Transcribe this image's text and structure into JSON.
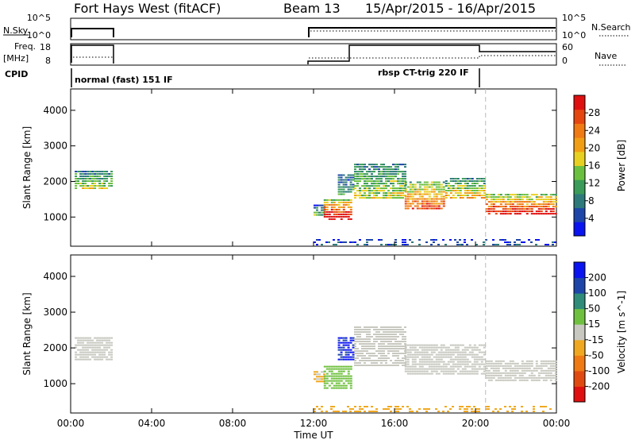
{
  "header": {
    "station": "Fort Hays West (fitACF)",
    "beam": "Beam 13",
    "dates": "15/Apr/2015 - 16/Apr/2015"
  },
  "strip_labels": {
    "nsky": "N.Sky",
    "nsky_ticks": [
      "10^5",
      "10^0"
    ],
    "freq": "Freq.",
    "freq_unit": "[MHz]",
    "freq_ticks": [
      "18",
      "8"
    ],
    "cpid": "CPID",
    "nsearch": "N.Search",
    "nsearch_ticks": [
      "10^5",
      "10^0"
    ],
    "nave": "Nave",
    "nave_ticks": [
      "60",
      "0"
    ]
  },
  "cpid_modes": {
    "left": "normal (fast) 151 IF",
    "right": "rbsp CT-trig 220 IF"
  },
  "chart_data": [
    {
      "type": "heatmap",
      "title": "",
      "parameter": "Power",
      "colorbar_label": "Power [dB]",
      "colorbar_ticks": [
        4,
        8,
        12,
        16,
        20,
        24,
        28
      ],
      "colorbar_range": [
        0,
        32
      ],
      "colors": [
        "#0a14f0",
        "#1e46a8",
        "#2e7a7a",
        "#3a9c58",
        "#6cc040",
        "#e8d020",
        "#f29e14",
        "#f07a14",
        "#e64610",
        "#e01010"
      ],
      "xlabel": "Time UT",
      "ylabel": "Slant Range [km]",
      "xlim_hours": [
        0,
        24
      ],
      "ylim_km": [
        180,
        4600
      ],
      "yticks": [
        1000,
        2000,
        3000,
        4000
      ],
      "echo_regions": [
        {
          "t_start": 0.2,
          "t_end": 2.0,
          "r_low": 1800,
          "r_high": 2300,
          "level": 0.45
        },
        {
          "t_start": 12.0,
          "t_end": 12.5,
          "r_low": 1050,
          "r_high": 1350,
          "level": 0.35
        },
        {
          "t_start": 12.5,
          "t_end": 13.8,
          "r_low": 950,
          "r_high": 1500,
          "level": 0.9
        },
        {
          "t_start": 13.2,
          "t_end": 14.0,
          "r_low": 1600,
          "r_high": 2200,
          "level": 0.3
        },
        {
          "t_start": 14.0,
          "t_end": 16.5,
          "r_low": 1500,
          "r_high": 2500,
          "level": 0.45
        },
        {
          "t_start": 16.5,
          "t_end": 18.5,
          "r_low": 1250,
          "r_high": 2000,
          "level": 0.7
        },
        {
          "t_start": 18.5,
          "t_end": 20.5,
          "r_low": 1500,
          "r_high": 2100,
          "level": 0.55
        },
        {
          "t_start": 20.5,
          "t_end": 24.0,
          "r_low": 1100,
          "r_high": 1650,
          "level": 0.8
        },
        {
          "t_start": 12.0,
          "t_end": 24.0,
          "r_low": 200,
          "r_high": 380,
          "level": 0.15
        }
      ]
    },
    {
      "type": "heatmap",
      "title": "",
      "parameter": "Velocity",
      "colorbar_label": "Velocity [m s^-1]",
      "colorbar_ticks": [
        200,
        100,
        50,
        15,
        -15,
        -50,
        -100,
        -200
      ],
      "colorbar_range": [
        -250,
        250
      ],
      "colors": [
        "#e01010",
        "#e04a10",
        "#f07a14",
        "#f0a820",
        "#c8c8c0",
        "#70c040",
        "#2e8c78",
        "#1e46a8",
        "#0a14f0"
      ],
      "xlabel": "Time UT",
      "ylabel": "Slant Range [km]",
      "xlim_hours": [
        0,
        24
      ],
      "ylim_km": [
        180,
        4600
      ],
      "yticks": [
        1000,
        2000,
        3000,
        4000
      ],
      "echo_regions": [
        {
          "t_start": 0.2,
          "t_end": 2.0,
          "r_low": 1700,
          "r_high": 2300,
          "velocity": 0
        },
        {
          "t_start": 12.0,
          "t_end": 12.5,
          "r_low": 1050,
          "r_high": 1350,
          "velocity": -30
        },
        {
          "t_start": 12.5,
          "t_end": 13.8,
          "r_low": 900,
          "r_high": 1500,
          "velocity": 60
        },
        {
          "t_start": 13.2,
          "t_end": 14.0,
          "r_low": 1700,
          "r_high": 2300,
          "velocity": 200
        },
        {
          "t_start": 14.0,
          "t_end": 16.5,
          "r_low": 1500,
          "r_high": 2600,
          "velocity": 0
        },
        {
          "t_start": 16.5,
          "t_end": 20.5,
          "r_low": 1300,
          "r_high": 2100,
          "velocity": 0
        },
        {
          "t_start": 20.5,
          "t_end": 24.0,
          "r_low": 1100,
          "r_high": 1650,
          "velocity": 0
        },
        {
          "t_start": 12.0,
          "t_end": 24.0,
          "r_low": 200,
          "r_high": 380,
          "velocity": -60
        }
      ]
    }
  ],
  "x_axis": {
    "ticks": [
      "00:00",
      "04:00",
      "08:00",
      "12:00",
      "16:00",
      "20:00",
      "00:00"
    ],
    "tick_hours": [
      0,
      4,
      8,
      12,
      16,
      20,
      24
    ],
    "label": "Time UT"
  },
  "operation_changes": {
    "gap": [
      2.0,
      12.0
    ],
    "mode_switch_hour": 20.5
  }
}
